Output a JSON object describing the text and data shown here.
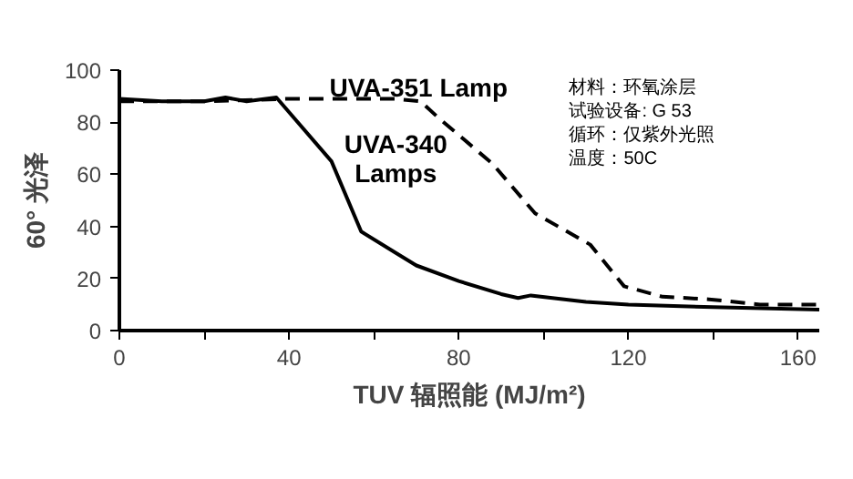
{
  "chart_data": {
    "type": "line",
    "xlabel": "TUV 辐照能 (MJ/m²)",
    "ylabel": "60° 光泽",
    "xlim": [
      0,
      165
    ],
    "ylim": [
      0,
      100
    ],
    "xticks": [
      0,
      {
        "value": 20,
        "label": null
      },
      40,
      {
        "value": 60,
        "label": null
      },
      80,
      {
        "value": 100,
        "label": null
      },
      120,
      {
        "value": 140,
        "label": null
      },
      160
    ],
    "yticks": [
      0,
      20,
      40,
      60,
      80,
      100
    ],
    "grid": false,
    "marker": "none",
    "annotations": [
      "材料：环氧涂层",
      "试验设备: G 53",
      "循环：仅紫外光照",
      "温度：50C"
    ],
    "series": [
      {
        "name": "UVA-351 Lamp",
        "color": "#000000",
        "line_style": "dashed",
        "x": [
          0,
          20,
          40,
          65,
          71,
          75,
          88,
          98,
          111,
          119,
          128,
          139,
          151,
          165
        ],
        "values": [
          88,
          88,
          89,
          89,
          88,
          82,
          64,
          45,
          33,
          17,
          13,
          12,
          10,
          10
        ]
      },
      {
        "name": "UVA-340 Lamps",
        "color": "#000000",
        "line_style": "solid",
        "x": [
          0,
          10,
          20,
          25,
          30,
          37,
          50,
          57,
          65,
          70,
          80,
          90,
          94,
          97,
          110,
          120,
          140,
          165
        ],
        "values": [
          89,
          88,
          88,
          89.5,
          88,
          89.5,
          65,
          38,
          30,
          25,
          19,
          14,
          12.5,
          13.5,
          11,
          10,
          9,
          8
        ]
      }
    ]
  }
}
